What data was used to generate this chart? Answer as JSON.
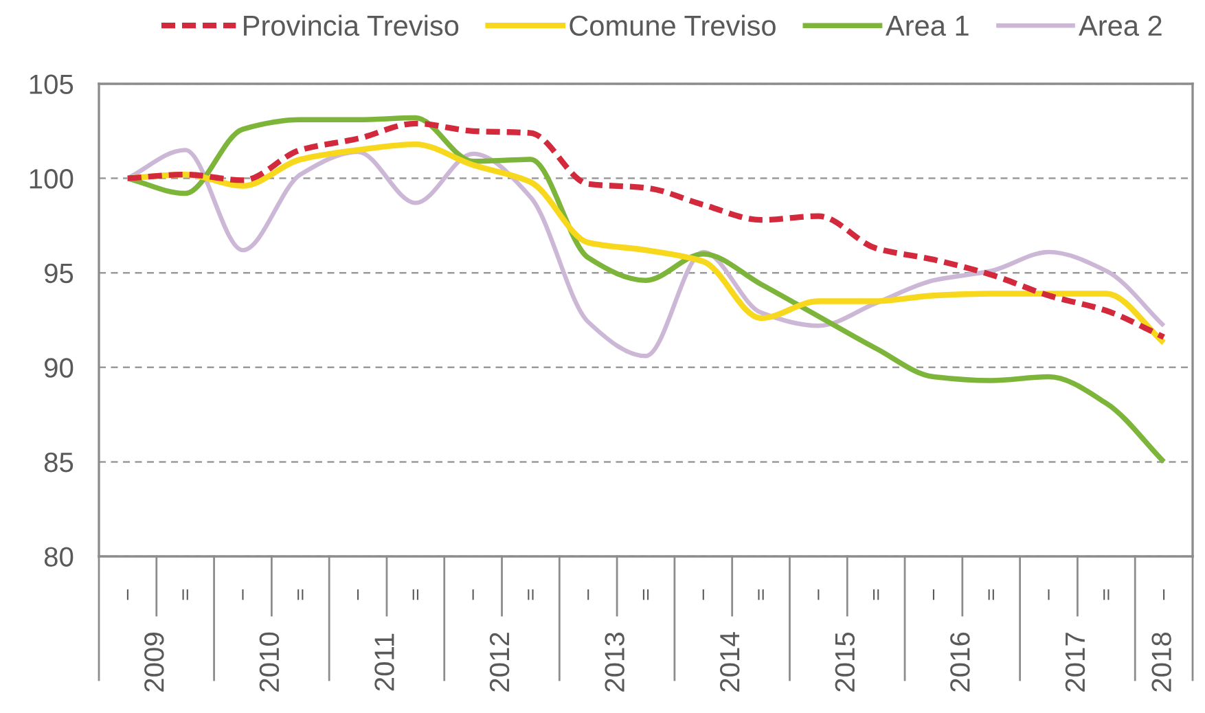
{
  "chart_data": {
    "type": "line",
    "categories": [
      "I",
      "II",
      "I",
      "II",
      "I",
      "II",
      "I",
      "II",
      "I",
      "II",
      "I",
      "II",
      "I",
      "II",
      "I",
      "II",
      "I",
      "II",
      "I"
    ],
    "series": [
      {
        "name": "Provincia Treviso",
        "color": "#d3293c",
        "line_style": "dashed",
        "values": [
          100,
          100.2,
          99.9,
          101.5,
          102.1,
          102.9,
          102.5,
          102.4,
          99.7,
          99.5,
          98.6,
          97.8,
          98.0,
          96.3,
          95.7,
          94.9,
          93.8,
          93.0,
          91.6
        ]
      },
      {
        "name": "Comune Treviso",
        "color": "#f7d81c",
        "values": [
          100,
          100.2,
          99.6,
          101.0,
          101.5,
          101.8,
          100.7,
          99.8,
          96.6,
          96.2,
          95.6,
          92.6,
          93.5,
          93.5,
          93.8,
          93.9,
          93.9,
          93.9,
          91.3
        ]
      },
      {
        "name": "Area 1",
        "color": "#7db53a",
        "values": [
          100,
          99.2,
          102.6,
          103.1,
          103.1,
          103.2,
          100.9,
          101.0,
          95.8,
          94.6,
          96.0,
          94.4,
          92.7,
          91.0,
          89.5,
          89.3,
          89.5,
          88.1,
          85.0
        ]
      },
      {
        "name": "Area 2",
        "color": "#cdb7d6",
        "values": [
          100,
          101.5,
          96.2,
          100.2,
          101.4,
          98.7,
          101.3,
          99.0,
          92.4,
          90.6,
          96.1,
          92.9,
          92.2,
          93.4,
          94.6,
          95.1,
          96.1,
          95.1,
          92.2
        ]
      }
    ],
    "ylim": [
      80,
      105
    ],
    "yticks": [
      80,
      85,
      90,
      95,
      100,
      105
    ],
    "grid": "y",
    "legend": "top",
    "line_style": "solid",
    "annotations": [
      "2009",
      "2010",
      "2011",
      "2012",
      "2013",
      "2014",
      "2015",
      "2016",
      "2017",
      "2018"
    ]
  }
}
